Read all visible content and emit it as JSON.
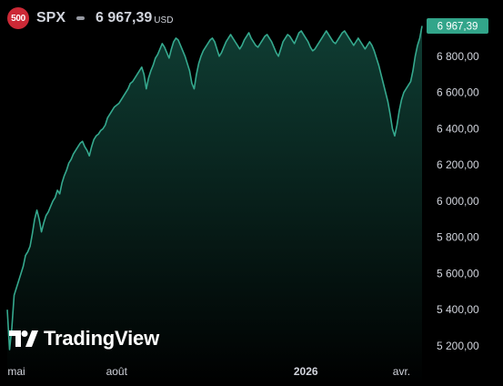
{
  "header": {
    "badge": "500",
    "symbol": "SPX",
    "price": "6 967,39",
    "currency": "USD"
  },
  "logo": {
    "text": "TradingView"
  },
  "colors": {
    "line": "#35a98e",
    "area_top": "#0f3d33",
    "background": "#000000",
    "last_price_bg": "#32a58a",
    "badge": "#cc2936",
    "axis_text": "#d1d4dc"
  },
  "chart_data": {
    "type": "area",
    "last_value": 6967.39,
    "last_value_label": "6 967,39",
    "ylim": [
      5100,
      7000
    ],
    "y_ticks": [
      {
        "value": 5200,
        "label": "5 200,00"
      },
      {
        "value": 5400,
        "label": "5 400,00"
      },
      {
        "value": 5600,
        "label": "5 600,00"
      },
      {
        "value": 5800,
        "label": "5 800,00"
      },
      {
        "value": 6000,
        "label": "6 000,00"
      },
      {
        "value": 6200,
        "label": "6 200,00"
      },
      {
        "value": 6400,
        "label": "6 400,00"
      },
      {
        "value": 6600,
        "label": "6 600,00"
      },
      {
        "value": 6800,
        "label": "6 800,00"
      }
    ],
    "x_ticks": [
      {
        "index": 4,
        "label": "mai",
        "bold": false
      },
      {
        "index": 48,
        "label": "août",
        "bold": false
      },
      {
        "index": 131,
        "label": "2026",
        "bold": true
      },
      {
        "index": 173,
        "label": "avr.",
        "bold": false
      }
    ],
    "values": [
      5400,
      5180,
      5300,
      5480,
      5520,
      5560,
      5600,
      5640,
      5700,
      5720,
      5750,
      5820,
      5900,
      5950,
      5900,
      5830,
      5880,
      5920,
      5940,
      5970,
      6000,
      6020,
      6060,
      6040,
      6100,
      6140,
      6170,
      6210,
      6230,
      6260,
      6280,
      6300,
      6320,
      6330,
      6300,
      6280,
      6250,
      6300,
      6340,
      6360,
      6370,
      6390,
      6400,
      6420,
      6460,
      6480,
      6500,
      6520,
      6530,
      6540,
      6560,
      6580,
      6600,
      6620,
      6650,
      6660,
      6680,
      6700,
      6720,
      6740,
      6700,
      6620,
      6680,
      6720,
      6750,
      6790,
      6810,
      6840,
      6870,
      6850,
      6820,
      6790,
      6840,
      6880,
      6900,
      6890,
      6860,
      6830,
      6800,
      6760,
      6720,
      6650,
      6620,
      6700,
      6760,
      6800,
      6830,
      6850,
      6870,
      6890,
      6900,
      6880,
      6840,
      6800,
      6820,
      6850,
      6880,
      6900,
      6920,
      6900,
      6880,
      6860,
      6840,
      6860,
      6890,
      6910,
      6930,
      6900,
      6880,
      6860,
      6850,
      6870,
      6890,
      6910,
      6920,
      6900,
      6880,
      6850,
      6820,
      6800,
      6840,
      6880,
      6900,
      6920,
      6910,
      6890,
      6870,
      6900,
      6930,
      6940,
      6920,
      6900,
      6880,
      6850,
      6830,
      6840,
      6860,
      6880,
      6900,
      6920,
      6940,
      6920,
      6900,
      6880,
      6870,
      6890,
      6910,
      6930,
      6940,
      6920,
      6900,
      6880,
      6860,
      6880,
      6900,
      6880,
      6860,
      6840,
      6860,
      6880,
      6860,
      6830,
      6790,
      6750,
      6700,
      6650,
      6600,
      6550,
      6480,
      6400,
      6360,
      6420,
      6500,
      6560,
      6600,
      6620,
      6640,
      6660,
      6720,
      6800,
      6860,
      6900,
      6967.39
    ]
  }
}
